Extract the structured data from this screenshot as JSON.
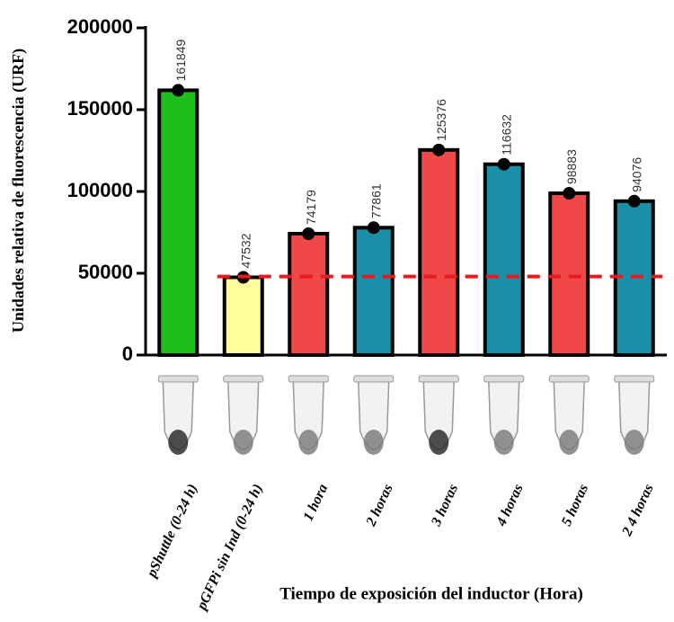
{
  "chart_data": {
    "type": "bar",
    "y_label": "Unidades relativa de fluorescencia (URF)",
    "x_label": "Tiempo de exposición del inductor (Hora)",
    "categories": [
      "pShuttle (0-24 h)",
      "pGFPi sin Ind (0-24 h)",
      "1 hora",
      "2 horas",
      "3 horas",
      "4 horas",
      "5 horas",
      "2 4 horas"
    ],
    "values": [
      161849,
      47532,
      74179,
      77861,
      125376,
      116632,
      98883,
      94076
    ],
    "colors": [
      "#1dbf1d",
      "#ffff99",
      "#f04848",
      "#1a8fa8",
      "#f04848",
      "#1a8fa8",
      "#f04848",
      "#1a8fa8"
    ],
    "reference_line": 48000,
    "reference_color": "#e8191f",
    "ylim": [
      0,
      200000
    ],
    "yticks": [
      0,
      50000,
      100000,
      150000,
      200000
    ]
  }
}
